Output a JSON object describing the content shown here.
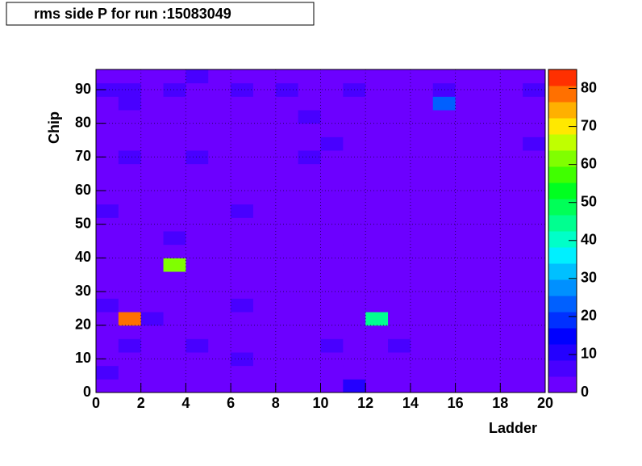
{
  "chart_data": {
    "type": "heatmap",
    "title": "rms side P for run :15083049",
    "x_label": "Ladder",
    "y_label": "Chip",
    "xlim": [
      0,
      20
    ],
    "ylim": [
      0,
      96
    ],
    "zlim": [
      0,
      85
    ],
    "xticks": [
      0,
      2,
      4,
      6,
      8,
      10,
      12,
      14,
      16,
      18,
      20
    ],
    "yticks": [
      0,
      10,
      20,
      30,
      40,
      50,
      60,
      70,
      80,
      90
    ],
    "zticks": [
      0,
      10,
      20,
      30,
      40,
      50,
      60,
      70,
      80
    ],
    "palette": [
      "#6c00ff",
      "#4800ff",
      "#2400ff",
      "#0000ff",
      "#0030ff",
      "#0060ff",
      "#0090ff",
      "#00c0ff",
      "#00f0ff",
      "#00ffc8",
      "#00ff90",
      "#00ff58",
      "#00ff20",
      "#40ff00",
      "#80ff00",
      "#c0ff00",
      "#ffe800",
      "#ffb000",
      "#ff7000",
      "#ff3000"
    ],
    "z": [
      [
        3,
        6,
        3,
        3,
        3,
        3,
        6,
        3,
        3,
        3,
        3,
        3,
        3,
        6,
        3,
        3,
        3,
        3,
        3,
        3,
        3,
        3,
        6,
        3
      ],
      [
        3,
        3,
        3,
        6,
        3,
        78,
        3,
        3,
        3,
        3,
        3,
        3,
        3,
        3,
        3,
        3,
        3,
        6,
        3,
        3,
        3,
        6,
        6,
        3
      ],
      [
        3,
        3,
        3,
        3,
        3,
        6,
        3,
        3,
        3,
        3,
        3,
        3,
        3,
        3,
        3,
        3,
        3,
        3,
        3,
        3,
        3,
        3,
        3,
        3
      ],
      [
        3,
        3,
        3,
        3,
        3,
        3,
        3,
        3,
        3,
        60,
        3,
        6,
        3,
        3,
        3,
        3,
        3,
        3,
        3,
        3,
        3,
        3,
        6,
        3
      ],
      [
        3,
        3,
        3,
        6,
        3,
        3,
        3,
        3,
        3,
        3,
        3,
        3,
        3,
        3,
        3,
        3,
        3,
        6,
        3,
        3,
        3,
        3,
        3,
        6
      ],
      [
        3,
        3,
        3,
        3,
        3,
        3,
        3,
        3,
        3,
        3,
        3,
        3,
        3,
        3,
        3,
        3,
        3,
        3,
        3,
        3,
        3,
        3,
        3,
        3
      ],
      [
        3,
        3,
        6,
        3,
        3,
        3,
        6,
        3,
        3,
        3,
        3,
        3,
        3,
        6,
        3,
        3,
        3,
        3,
        3,
        3,
        3,
        3,
        6,
        3
      ],
      [
        3,
        3,
        3,
        3,
        3,
        3,
        3,
        3,
        3,
        3,
        3,
        3,
        3,
        3,
        3,
        3,
        3,
        3,
        3,
        3,
        3,
        3,
        3,
        3
      ],
      [
        3,
        3,
        3,
        3,
        3,
        3,
        3,
        3,
        3,
        3,
        3,
        3,
        3,
        3,
        3,
        3,
        3,
        3,
        3,
        3,
        3,
        3,
        6,
        3
      ],
      [
        3,
        3,
        3,
        3,
        3,
        3,
        3,
        3,
        3,
        3,
        3,
        3,
        3,
        3,
        3,
        3,
        3,
        6,
        3,
        3,
        6,
        3,
        3,
        3
      ],
      [
        3,
        3,
        3,
        6,
        3,
        3,
        3,
        3,
        3,
        3,
        3,
        3,
        3,
        3,
        3,
        3,
        3,
        3,
        6,
        3,
        3,
        3,
        3,
        3
      ],
      [
        12,
        3,
        3,
        3,
        3,
        3,
        3,
        3,
        3,
        3,
        3,
        3,
        3,
        3,
        3,
        3,
        3,
        3,
        3,
        3,
        3,
        3,
        6,
        3
      ],
      [
        3,
        3,
        3,
        3,
        3,
        45,
        3,
        3,
        3,
        3,
        3,
        3,
        3,
        3,
        3,
        3,
        3,
        3,
        3,
        3,
        3,
        3,
        3,
        3
      ],
      [
        3,
        3,
        3,
        6,
        3,
        3,
        3,
        3,
        3,
        3,
        3,
        3,
        3,
        3,
        3,
        3,
        3,
        3,
        3,
        3,
        3,
        3,
        3,
        3
      ],
      [
        3,
        3,
        3,
        3,
        3,
        3,
        3,
        3,
        3,
        3,
        3,
        3,
        3,
        3,
        3,
        3,
        3,
        3,
        3,
        3,
        3,
        3,
        3,
        3
      ],
      [
        3,
        3,
        3,
        3,
        3,
        3,
        3,
        3,
        3,
        3,
        3,
        3,
        3,
        3,
        3,
        3,
        3,
        3,
        3,
        3,
        3,
        25,
        6,
        3
      ],
      [
        3,
        3,
        3,
        3,
        3,
        3,
        3,
        3,
        3,
        3,
        3,
        3,
        3,
        3,
        3,
        3,
        3,
        3,
        3,
        3,
        3,
        3,
        3,
        3
      ],
      [
        3,
        3,
        3,
        3,
        3,
        3,
        3,
        3,
        3,
        3,
        3,
        3,
        3,
        3,
        3,
        3,
        3,
        3,
        3,
        3,
        3,
        3,
        3,
        3
      ],
      [
        3,
        3,
        3,
        3,
        3,
        3,
        3,
        3,
        3,
        3,
        3,
        3,
        3,
        3,
        3,
        3,
        3,
        3,
        3,
        3,
        3,
        3,
        3,
        3
      ],
      [
        3,
        3,
        3,
        3,
        3,
        3,
        3,
        3,
        3,
        3,
        3,
        3,
        3,
        3,
        3,
        3,
        3,
        3,
        6,
        3,
        3,
        3,
        6,
        3
      ]
    ]
  }
}
